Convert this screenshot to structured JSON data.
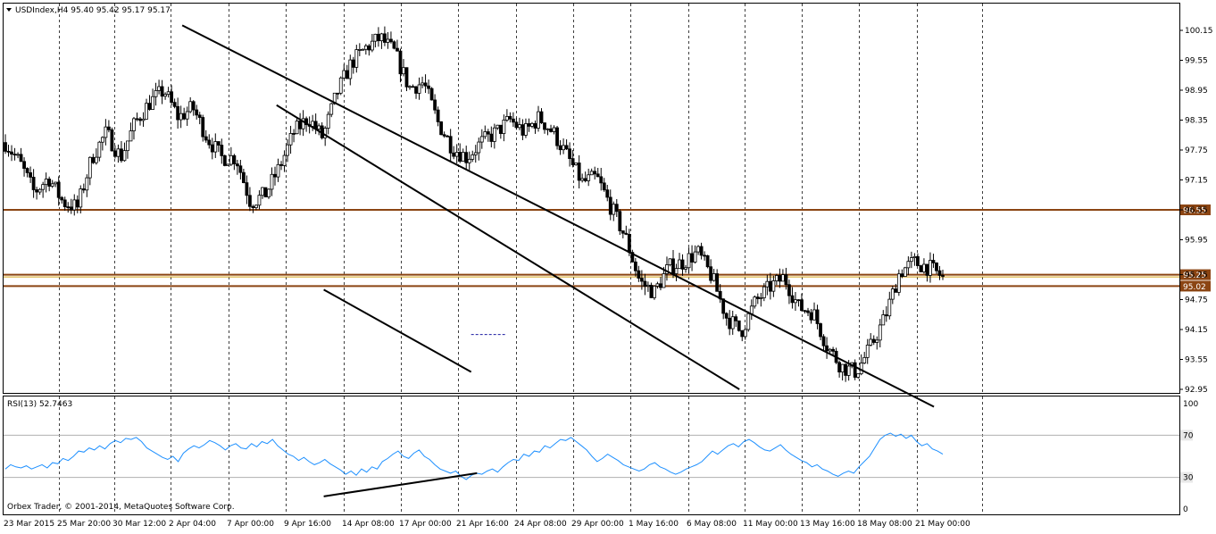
{
  "header": {
    "symbol_line": "USDIndex,H4  95.40 95.42 95.17 95.17"
  },
  "rsi_header": "RSI(13) 52.7463",
  "copyright": "Orbex Trader, © 2001-2014, MetaQuotes Software Corp.",
  "colors": {
    "bull_candle": "#000000",
    "bear_candle": "#000000",
    "level_line": "#8B4513",
    "level_badge": "#8B4513",
    "rsi_line": "#1E90FF",
    "trend_line": "#000000",
    "dashed_grid": "#000000",
    "rsi_level": "#b0b0b0"
  },
  "chart_data": [
    {
      "type": "candlestick",
      "title": "USDIndex,H4",
      "ylim": [
        92.95,
        100.15
      ],
      "y_ticks": [
        "100.15",
        "99.55",
        "98.95",
        "98.35",
        "97.75",
        "97.15",
        "96.55",
        "95.95",
        "95.25",
        "94.75",
        "94.15",
        "93.55",
        "92.95"
      ],
      "x_tick_labels": [
        "23 Mar 2015",
        "25 Mar 20:00",
        "30 Mar 12:00",
        "2 Apr 04:00",
        "7 Apr 00:00",
        "9 Apr 16:00",
        "14 Apr 08:00",
        "17 Apr 00:00",
        "21 Apr 16:00",
        "24 Apr 08:00",
        "29 Apr 00:00",
        "1 May 16:00",
        "6 May 08:00",
        "11 May 00:00",
        "13 May 16:00",
        "18 May 08:00",
        "21 May 00:00"
      ],
      "close_path": [
        97.9,
        97.5,
        96.9,
        97.2,
        96.7,
        96.6,
        97.6,
        98.1,
        97.6,
        98.3,
        98.7,
        98.95,
        98.4,
        98.6,
        98.0,
        97.6,
        97.6,
        96.7,
        96.85,
        97.4,
        98.1,
        98.4,
        98.0,
        98.9,
        99.5,
        99.8,
        100.0,
        99.7,
        99.0,
        99.1,
        98.3,
        97.8,
        97.6,
        97.9,
        98.1,
        98.35,
        98.1,
        98.4,
        98.1,
        97.6,
        97.1,
        97.2,
        96.6,
        96.0,
        95.1,
        94.9,
        95.4,
        95.5,
        95.7,
        95.2,
        94.4,
        94.1,
        94.7,
        95.0,
        95.2,
        94.6,
        94.5,
        93.8,
        93.4,
        93.3,
        93.8,
        94.4,
        95.3,
        95.5,
        95.4,
        95.2
      ],
      "levels": [
        {
          "label": "96.55",
          "value": 96.55
        },
        {
          "label": "95.25",
          "value": 95.25
        },
        {
          "label": "95.02",
          "value": 95.02
        }
      ],
      "trendlines": [
        {
          "from": [
            60,
            100.25
          ],
          "to": [
            315,
            92.6
          ]
        },
        {
          "from": [
            92,
            98.65
          ],
          "to": [
            249,
            92.95
          ]
        },
        {
          "from": [
            108,
            94.95
          ],
          "to": [
            158,
            93.3
          ]
        },
        {
          "from": [
            158,
            94.05
          ],
          "to": [
            170,
            94.05
          ]
        }
      ]
    },
    {
      "type": "line",
      "title": "RSI(13) 52.7463",
      "ylim": [
        0,
        100
      ],
      "y_ticks": [
        "100",
        "70",
        "30",
        "0"
      ],
      "levels": [
        70,
        30
      ],
      "values": [
        38,
        42,
        40,
        39,
        41,
        38,
        40,
        42,
        39,
        44,
        43,
        48,
        46,
        50,
        55,
        54,
        58,
        56,
        60,
        57,
        62,
        65,
        63,
        67,
        66,
        68,
        64,
        58,
        55,
        52,
        49,
        47,
        50,
        45,
        53,
        57,
        60,
        58,
        61,
        65,
        63,
        60,
        56,
        60,
        62,
        58,
        57,
        62,
        59,
        64,
        62,
        66,
        60,
        56,
        52,
        50,
        46,
        49,
        45,
        42,
        44,
        47,
        43,
        40,
        37,
        33,
        36,
        32,
        38,
        35,
        40,
        38,
        45,
        48,
        52,
        55,
        50,
        48,
        53,
        56,
        50,
        47,
        42,
        38,
        36,
        34,
        36,
        31,
        28,
        32,
        34,
        33,
        36,
        38,
        35,
        40,
        44,
        47,
        46,
        52,
        50,
        55,
        54,
        60,
        58,
        62,
        66,
        65,
        68,
        64,
        60,
        56,
        50,
        45,
        48,
        52,
        49,
        46,
        42,
        40,
        38,
        36,
        38,
        42,
        44,
        40,
        38,
        35,
        33,
        35,
        38,
        40,
        42,
        45,
        50,
        55,
        52,
        56,
        60,
        62,
        59,
        64,
        66,
        63,
        59,
        56,
        55,
        58,
        61,
        56,
        52,
        49,
        46,
        44,
        40,
        42,
        38,
        36,
        33,
        31,
        34,
        36,
        34,
        40,
        45,
        50,
        58,
        66,
        70,
        72,
        69,
        71,
        67,
        70,
        64,
        60,
        62,
        57,
        55,
        52
      ],
      "trendlines": [
        {
          "from": [
            108,
            12
          ],
          "to": [
            160,
            34
          ]
        }
      ]
    }
  ]
}
